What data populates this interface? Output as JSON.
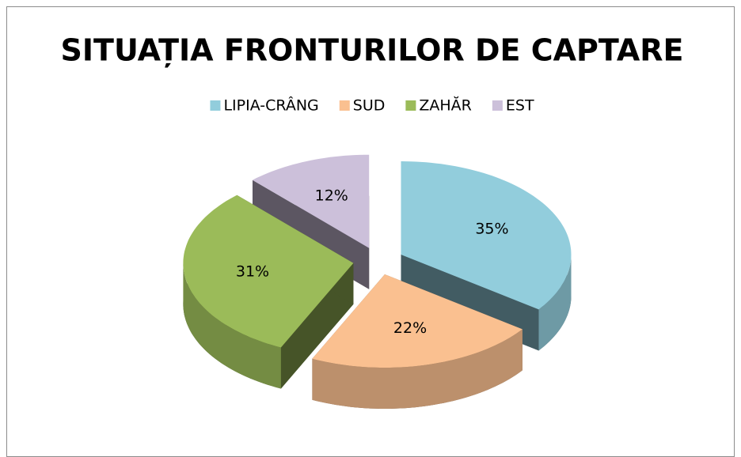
{
  "chart_data": {
    "type": "pie3d",
    "title": "SITUAȚIA FRONTURILOR DE CAPTARE",
    "categories": [
      "LIPIA-CRÂNG",
      "SUD",
      "ZAHĂR",
      "EST"
    ],
    "values": [
      35,
      22,
      31,
      12
    ],
    "value_labels": [
      "35%",
      "22%",
      "31%",
      "12%"
    ],
    "colors": [
      "#92cddc",
      "#fac090",
      "#9bbb59",
      "#ccc0da"
    ],
    "legend": "top"
  }
}
